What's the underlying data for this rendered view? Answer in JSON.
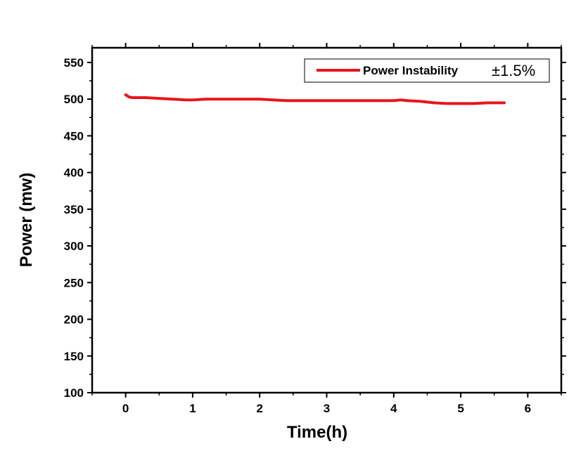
{
  "chart_data": {
    "type": "line",
    "xlabel": "Time(h)",
    "ylabel": "Power (mw)",
    "xlim": [
      -0.5,
      6.5
    ],
    "ylim": [
      100,
      570
    ],
    "x_ticks": [
      0,
      1,
      2,
      3,
      4,
      5,
      6
    ],
    "y_ticks": [
      100,
      150,
      200,
      250,
      300,
      350,
      400,
      450,
      500,
      550
    ],
    "grid": false,
    "legend": {
      "placement": "top-right",
      "note": "±1.5%"
    },
    "series": [
      {
        "name": "Power Instability",
        "color": "#e8141c",
        "x": [
          0,
          0.05,
          0.1,
          0.2,
          0.3,
          0.5,
          0.7,
          0.9,
          1.0,
          1.2,
          1.4,
          1.6,
          1.8,
          2.0,
          2.2,
          2.4,
          2.6,
          2.8,
          3.0,
          3.2,
          3.4,
          3.6,
          3.8,
          4.0,
          4.1,
          4.2,
          4.4,
          4.6,
          4.8,
          5.0,
          5.2,
          5.4,
          5.6,
          5.65
        ],
        "y": [
          506,
          503,
          502,
          502,
          502,
          501,
          500,
          499,
          499,
          500,
          500,
          500,
          500,
          500,
          499,
          498,
          498,
          498,
          498,
          498,
          498,
          498,
          498,
          498,
          499,
          498,
          497,
          495,
          494,
          494,
          494,
          495,
          495,
          495
        ]
      }
    ]
  }
}
